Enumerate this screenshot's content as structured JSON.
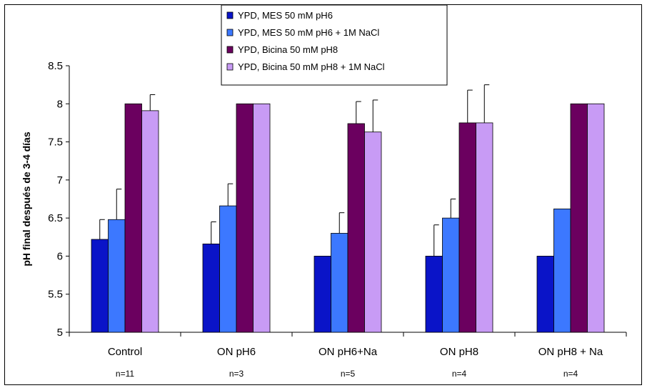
{
  "chart_data": {
    "type": "bar",
    "ylabel": "pH final después de 3-4 días",
    "xlabel": "",
    "ylim": [
      5,
      8.5
    ],
    "yticks": [
      "5",
      "5.5",
      "6",
      "6.5",
      "7",
      "7.5",
      "8",
      "8.5"
    ],
    "grid": false,
    "legend_position": "top-center",
    "categories": [
      "Control",
      "ON pH6",
      "ON pH6+Na",
      "ON pH8",
      "ON pH8 + Na"
    ],
    "n_labels": [
      "n=11",
      "n=3",
      "n=5",
      "n=4",
      "n=4"
    ],
    "series": [
      {
        "name": "YPD, MES 50 mM pH6",
        "color": "#0A14C8",
        "values": [
          6.22,
          6.16,
          6.0,
          6.0,
          6.0
        ],
        "errors": [
          0.26,
          0.29,
          0.0,
          0.41,
          0.0
        ]
      },
      {
        "name": "YPD, MES 50 mM pH6 + 1M NaCl",
        "color": "#3C78FF",
        "values": [
          6.48,
          6.66,
          6.3,
          6.5,
          6.62
        ],
        "errors": [
          0.4,
          0.29,
          0.27,
          0.25,
          0.0
        ]
      },
      {
        "name": "YPD, Bicina 50 mM pH8",
        "color": "#6B005F",
        "values": [
          8.0,
          8.0,
          7.74,
          7.75,
          8.0
        ],
        "errors": [
          0.0,
          0.0,
          0.29,
          0.43,
          0.0
        ]
      },
      {
        "name": "YPD, Bicina 50 mM pH8 + 1M NaCl",
        "color": "#C89BF5",
        "values": [
          7.91,
          8.0,
          7.63,
          7.75,
          8.0
        ],
        "errors": [
          0.21,
          0.0,
          0.42,
          0.5,
          0.0
        ]
      }
    ]
  }
}
